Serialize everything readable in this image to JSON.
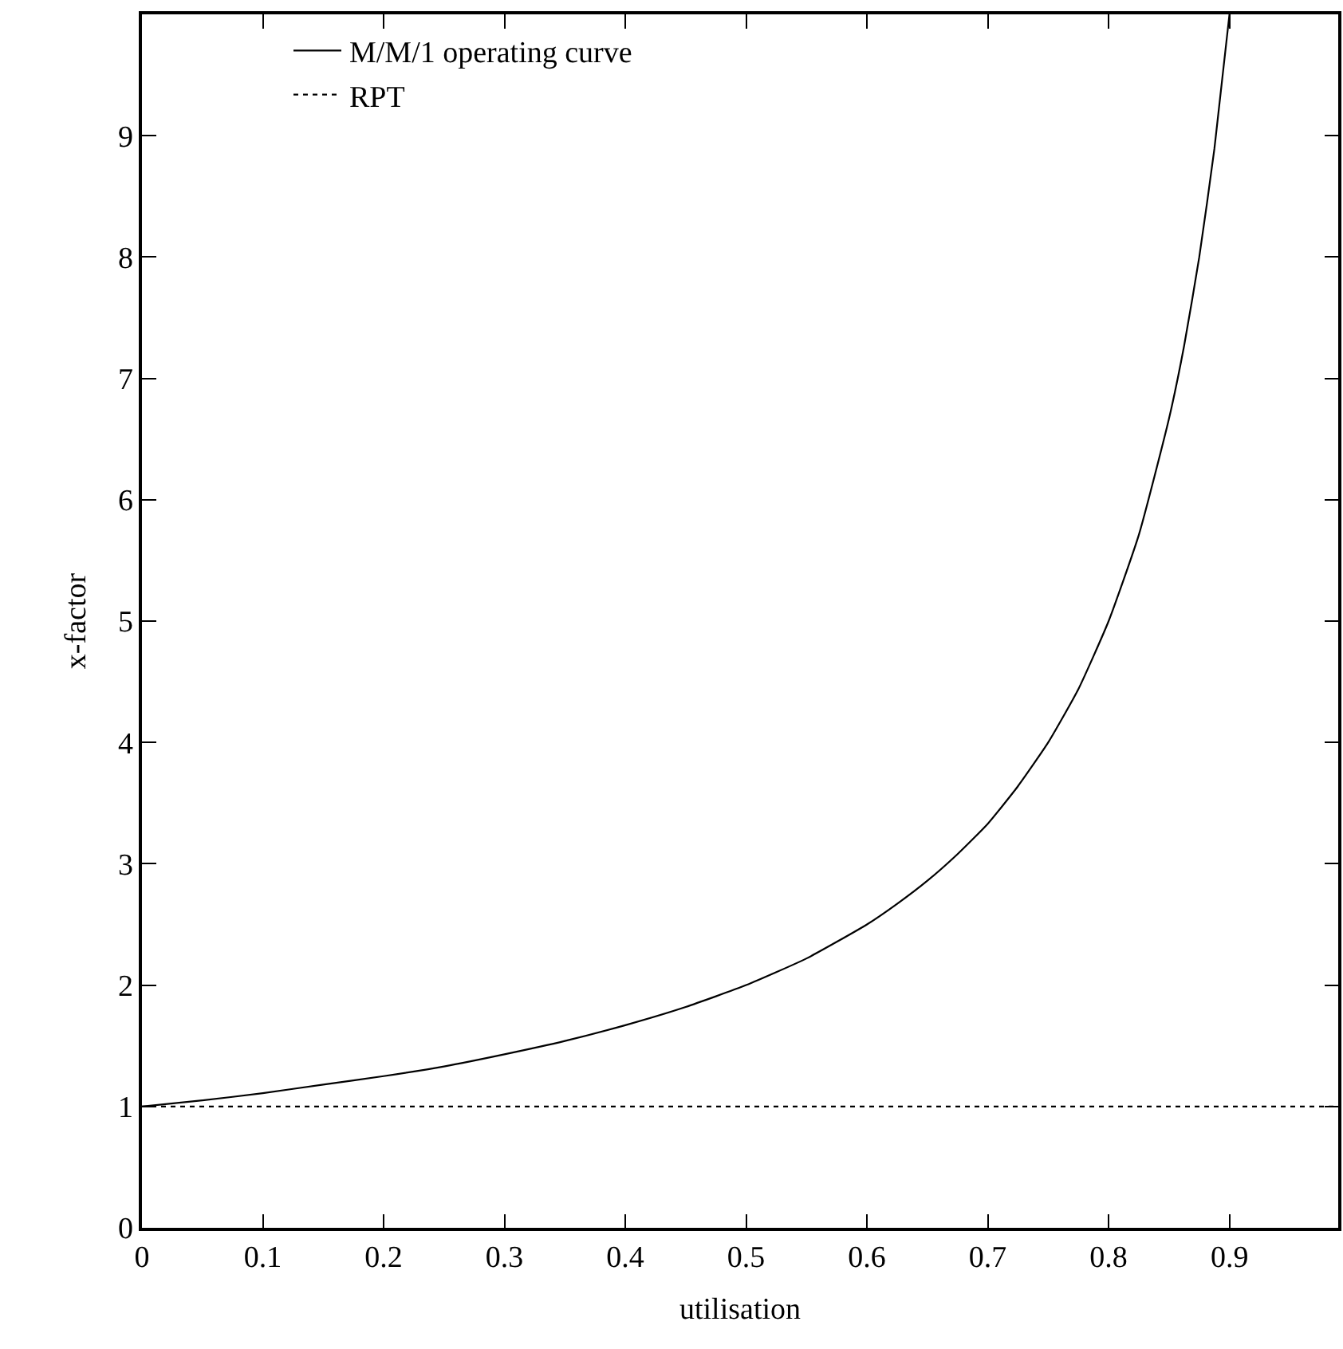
{
  "chart_data": {
    "type": "line",
    "xlabel": "utilisation",
    "ylabel": "x-factor",
    "xlim": [
      0,
      0.99
    ],
    "xticks": [
      0,
      0.1,
      0.2,
      0.3,
      0.4,
      0.5,
      0.6,
      0.7,
      0.8,
      0.9
    ],
    "ylim": [
      0,
      10
    ],
    "yticks": [
      0,
      1,
      2,
      3,
      4,
      5,
      6,
      7,
      8,
      9
    ],
    "legend": "top left",
    "marker": "none",
    "series": [
      {
        "name": "M/M/1 operating curve",
        "color": "#000000",
        "line_style": "solid",
        "x": [
          0,
          0.05,
          0.1,
          0.15,
          0.2,
          0.25,
          0.3,
          0.35,
          0.4,
          0.45,
          0.5,
          0.55,
          0.6,
          0.625,
          0.65,
          0.675,
          0.7,
          0.725,
          0.75,
          0.775,
          0.8,
          0.825,
          0.85,
          0.8625,
          0.875,
          0.8875,
          0.9
        ],
        "values": [
          1,
          1.05,
          1.11,
          1.18,
          1.25,
          1.33,
          1.43,
          1.54,
          1.67,
          1.82,
          2,
          2.22,
          2.5,
          2.67,
          2.86,
          3.08,
          3.33,
          3.64,
          4,
          4.44,
          5,
          5.71,
          6.67,
          7.27,
          8,
          8.89,
          10
        ]
      },
      {
        "name": "RPT",
        "color": "#000000",
        "line_style": "dotted",
        "x": [
          0,
          0.99
        ],
        "values": [
          1,
          1
        ]
      }
    ]
  }
}
